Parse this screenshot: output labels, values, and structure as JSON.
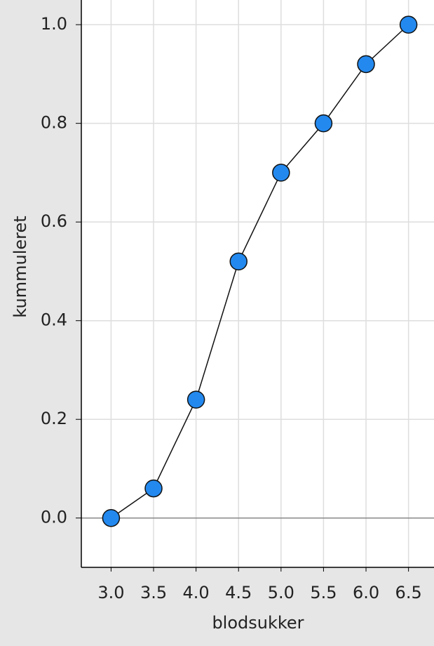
{
  "chart_data": {
    "type": "scatter",
    "x_label": "blodsukker",
    "y_label": "kummuleret",
    "x": [
      3.0,
      3.5,
      4.0,
      4.5,
      5.0,
      5.5,
      6.0,
      6.5
    ],
    "values": [
      0,
      0.06,
      0.24,
      0.52,
      0.7,
      0.8,
      0.92,
      1.0
    ],
    "color": "#2389ef",
    "connect": true,
    "grid": true,
    "xlim": [
      2.65,
      6.8
    ],
    "ylim": [
      -0.1,
      1.05
    ],
    "xticks": [
      {
        "value": 3,
        "label": "3.0"
      },
      3.5,
      {
        "value": 4,
        "label": "4.0"
      },
      4.5,
      {
        "value": 5,
        "label": "5.0"
      },
      5.5,
      {
        "value": 6,
        "label": "6.0"
      },
      6.5
    ],
    "yticks": [
      {
        "value": 0,
        "label": "0.0"
      },
      0.2,
      0.4,
      0.6,
      0.8,
      {
        "value": 1,
        "label": "1.0"
      }
    ]
  }
}
